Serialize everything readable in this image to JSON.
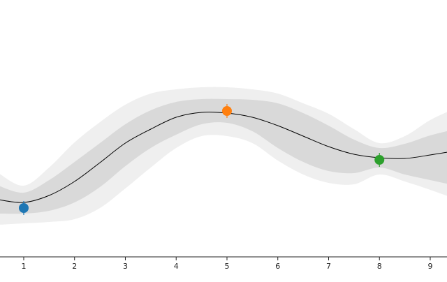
{
  "chart_data": {
    "type": "line",
    "x": [
      0.5,
      1,
      1.5,
      2,
      2.5,
      3,
      3.5,
      4,
      4.5,
      5,
      5.5,
      6,
      6.5,
      7,
      7.5,
      8,
      8.5,
      9,
      9.5
    ],
    "mean": {
      "color": "#000000",
      "values": [
        8.2,
        7.8,
        8.8,
        10.8,
        13.5,
        16.3,
        18.3,
        20.0,
        20.7,
        20.6,
        20.0,
        18.8,
        17.3,
        15.8,
        14.7,
        14.2,
        14.1,
        14.6,
        15.2
      ]
    },
    "bands": [
      {
        "color": "#efefef",
        "upper": [
          12.0,
          10.2,
          12.8,
          16.4,
          19.3,
          21.8,
          23.4,
          24.0,
          24.3,
          24.3,
          24.0,
          23.4,
          22.0,
          20.5,
          18.3,
          16.3,
          17.3,
          19.6,
          21.3
        ],
        "lower": [
          4.6,
          4.8,
          5.0,
          5.4,
          7.0,
          9.8,
          12.8,
          15.6,
          17.3,
          17.3,
          16.3,
          13.8,
          11.8,
          10.6,
          10.4,
          11.8,
          10.8,
          9.6,
          8.3
        ]
      },
      {
        "color": "#d9d9d9",
        "upper": [
          10.2,
          9.2,
          11.0,
          13.6,
          16.3,
          19.0,
          21.0,
          22.2,
          22.6,
          22.6,
          22.5,
          22.0,
          20.6,
          18.8,
          16.8,
          15.6,
          16.2,
          17.4,
          18.3
        ],
        "lower": [
          6.2,
          6.2,
          6.6,
          7.8,
          10.0,
          13.0,
          15.6,
          17.5,
          19.0,
          19.2,
          18.0,
          15.6,
          13.6,
          12.3,
          12.0,
          12.8,
          11.8,
          11.0,
          10.2
        ]
      }
    ],
    "points": {
      "x": [
        1,
        5,
        8
      ],
      "y": [
        7.0,
        20.9,
        13.9
      ],
      "err": [
        1.0,
        1.0,
        1.0
      ],
      "colors": [
        "#1f77b4",
        "#ff7f0e",
        "#2ca02c"
      ]
    },
    "xlim": [
      0.533,
      9.33
    ],
    "ylim": [
      0,
      36.8
    ],
    "xticks": [
      1,
      2,
      3,
      4,
      5,
      6,
      7,
      8,
      9
    ]
  }
}
